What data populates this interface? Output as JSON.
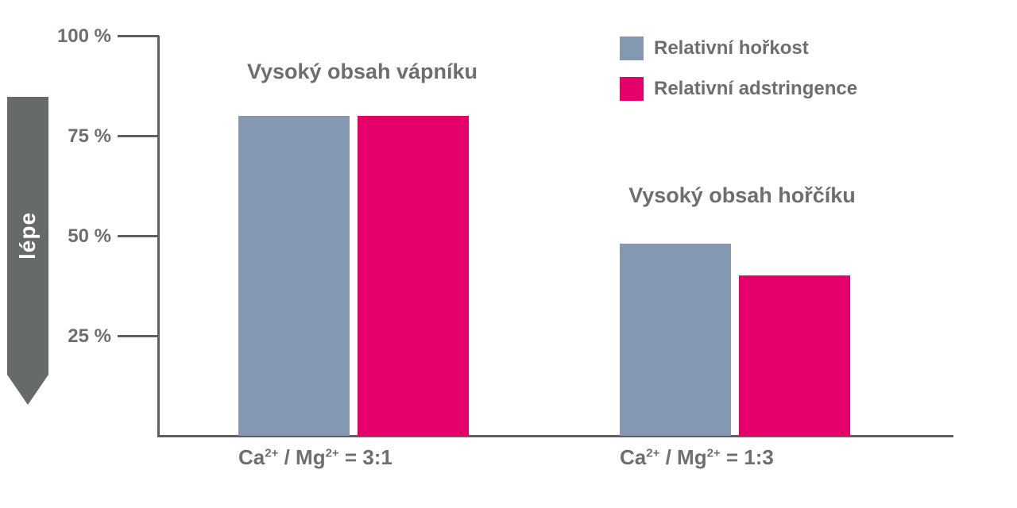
{
  "chart_data": {
    "type": "bar",
    "categories": [
      "Ca2+ / Mg2+ = 3:1",
      "Ca2+ / Mg2+ = 1:3"
    ],
    "series": [
      {
        "name": "Relativní hořkost",
        "color": "#8499b1",
        "values": [
          80,
          48
        ]
      },
      {
        "name": "Relativní adstringence",
        "color": "#e50069",
        "values": [
          80,
          40
        ]
      }
    ],
    "group_titles": [
      "Vysoký obsah vápníku",
      "Vysoký obsah hořčíku"
    ],
    "x_tick_labels": [
      {
        "base1": "Ca",
        "sup1": "2+",
        "base2": " / Mg",
        "sup2": "2+",
        "suffix": " = 3:1"
      },
      {
        "base1": "Ca",
        "sup1": "2+",
        "base2": " / Mg",
        "sup2": "2+",
        "suffix": " = 1:3"
      }
    ],
    "y_ticks": [
      {
        "value": 100,
        "label": "100 %"
      },
      {
        "value": 75,
        "label": "75 %"
      },
      {
        "value": 50,
        "label": "50 %"
      },
      {
        "value": 25,
        "label": "25 %"
      }
    ],
    "ylim": [
      0,
      100
    ],
    "grid": false,
    "legend_position": "top-right",
    "y_direction_label": "lépe"
  },
  "colors": {
    "axis": "#5d6062",
    "text": "#6b6f71",
    "arrow": "#666a6b",
    "arrow_text": "#ffffff",
    "bitterness_bar": "#8499b1",
    "astringency_bar": "#e50069"
  }
}
